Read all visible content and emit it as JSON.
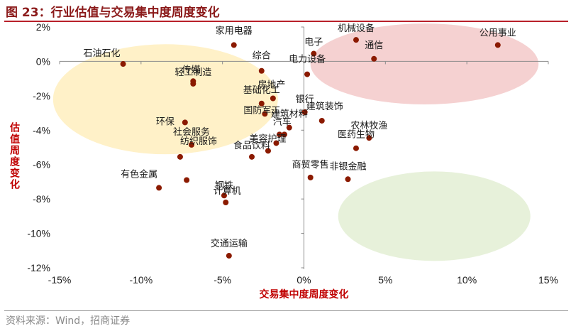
{
  "figure": {
    "title": "图 23：行业估值与交易集中度周度变化",
    "source": "资料来源：Wind，招商证券"
  },
  "colors": {
    "title": "#8B1A1A",
    "axis_title": "#C00000",
    "point": "#8B1A00",
    "zone_yellow": "#FFEFC2",
    "zone_red": "#F4CCCC",
    "zone_green": "#E4EFD6"
  },
  "chart_data": {
    "type": "scatter",
    "title": "",
    "xlabel": "交易集中度周度变化",
    "ylabel": "估值周度变化",
    "xlim": [
      -0.15,
      0.15
    ],
    "ylim": [
      -0.12,
      0.02
    ],
    "xticks": [
      -0.15,
      -0.1,
      -0.05,
      0,
      0.05,
      0.1,
      0.15
    ],
    "yticks": [
      0.02,
      0,
      -0.02,
      -0.04,
      -0.06,
      -0.08,
      -0.1,
      -0.12
    ],
    "xtick_labels": [
      "-15%",
      "-10%",
      "-5%",
      "0%",
      "5%",
      "10%",
      "15%"
    ],
    "ytick_labels": [
      "2%",
      "0%",
      "-2%",
      "-4%",
      "-6%",
      "-8%",
      "-10%",
      "-12%"
    ],
    "grid": false,
    "zones": [
      {
        "color": "yellow",
        "cx": -0.085,
        "cy": -0.022,
        "rx": 0.069,
        "ry": 0.032
      },
      {
        "color": "red",
        "cx": 0.074,
        "cy": -0.0015,
        "rx": 0.07,
        "ry": 0.0235
      },
      {
        "color": "green",
        "cx": 0.08,
        "cy": -0.09,
        "rx": 0.059,
        "ry": 0.026
      }
    ],
    "points": [
      {
        "name": "石油石化",
        "x": -0.111,
        "y": -0.0015
      },
      {
        "name": "家用电器",
        "x": -0.043,
        "y": 0.0095
      },
      {
        "name": "电子",
        "x": 0.006,
        "y": 0.0045
      },
      {
        "name": "机械设备",
        "x": 0.032,
        "y": 0.0125
      },
      {
        "name": "公用事业",
        "x": 0.119,
        "y": 0.0095
      },
      {
        "name": "通信",
        "x": 0.043,
        "y": 0.0015
      },
      {
        "name": "综合",
        "x": -0.026,
        "y": -0.0055
      },
      {
        "name": "电力设备",
        "x": 0.002,
        "y": -0.0075
      },
      {
        "name": "传媒",
        "x": -0.068,
        "y": -0.0115
      },
      {
        "name": "轻工制造",
        "x": -0.068,
        "y": -0.013
      },
      {
        "name": "房地产",
        "x": -0.019,
        "y": -0.0215
      },
      {
        "name": "基础化工",
        "x": -0.026,
        "y": -0.0245
      },
      {
        "name": "国防军工",
        "x": -0.024,
        "y": -0.0305
      },
      {
        "name": "银行",
        "x": 0.0005,
        "y": -0.0295
      },
      {
        "name": "建筑装饰",
        "x": 0.011,
        "y": -0.0345
      },
      {
        "name": "环保",
        "x": -0.073,
        "y": -0.0355
      },
      {
        "name": "建筑材料",
        "x": -0.009,
        "y": -0.0385
      },
      {
        "name": "社会服务",
        "x": -0.069,
        "y": -0.0485
      },
      {
        "name": "美容护理",
        "x": -0.017,
        "y": -0.0475
      },
      {
        "name": "汽车",
        "x": -0.012,
        "y": -0.0425
      },
      {
        "name": "食品饮料",
        "x": -0.032,
        "y": -0.0555
      },
      {
        "name": "纺织服饰",
        "x": -0.076,
        "y": -0.0555
      },
      {
        "name": "有色金属",
        "x": -0.089,
        "y": -0.0735
      },
      {
        "name": "农林牧渔",
        "x": 0.04,
        "y": -0.0445
      },
      {
        "name": "医药生物",
        "x": 0.032,
        "y": -0.0505
      },
      {
        "name": "商贸零售",
        "x": 0.004,
        "y": -0.0675
      },
      {
        "name": "非银金融",
        "x": 0.027,
        "y": -0.0685
      },
      {
        "name": "钢铁",
        "x": -0.049,
        "y": -0.078
      },
      {
        "name": "计算机",
        "x": -0.048,
        "y": -0.082
      },
      {
        "name": "交通运输",
        "x": -0.046,
        "y": -0.113
      },
      {
        "name": "",
        "x": -0.072,
        "y": -0.069
      },
      {
        "name": "",
        "x": -0.022,
        "y": -0.052
      },
      {
        "name": "",
        "x": -0.015,
        "y": -0.0425
      }
    ]
  }
}
